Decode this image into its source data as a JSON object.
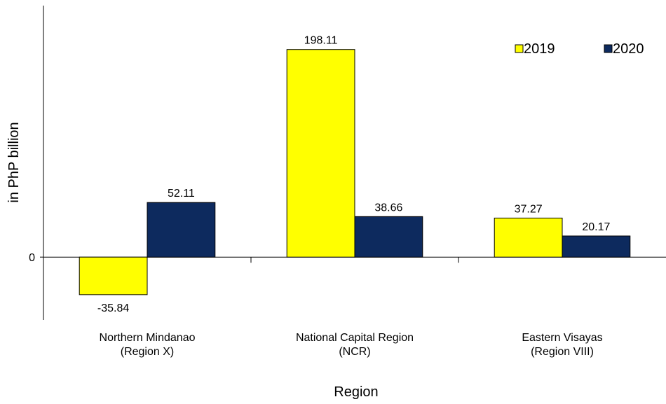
{
  "chart_data": {
    "type": "bar",
    "title": "",
    "xlabel": "Region",
    "ylabel": "in PhP billion",
    "categories": [
      [
        "Northern Mindanao",
        "(Region X)"
      ],
      [
        "National Capital Region",
        "(NCR)"
      ],
      [
        "Eastern Visayas",
        "(Region VIII)"
      ]
    ],
    "series": [
      {
        "name": "2019",
        "color": "#ffff00",
        "values": [
          -35.84,
          198.11,
          37.27
        ],
        "labels": [
          "-35.84",
          "198.11",
          "37.27"
        ]
      },
      {
        "name": "2020",
        "color": "#0d2a5e",
        "values": [
          52.11,
          38.66,
          20.17
        ],
        "labels": [
          "52.11",
          "38.66",
          "20.17"
        ]
      }
    ],
    "y_ticks": [
      {
        "value": 0,
        "label": "0"
      }
    ],
    "ylim": [
      -60,
      240
    ],
    "grid": false,
    "legend": "top-right"
  }
}
